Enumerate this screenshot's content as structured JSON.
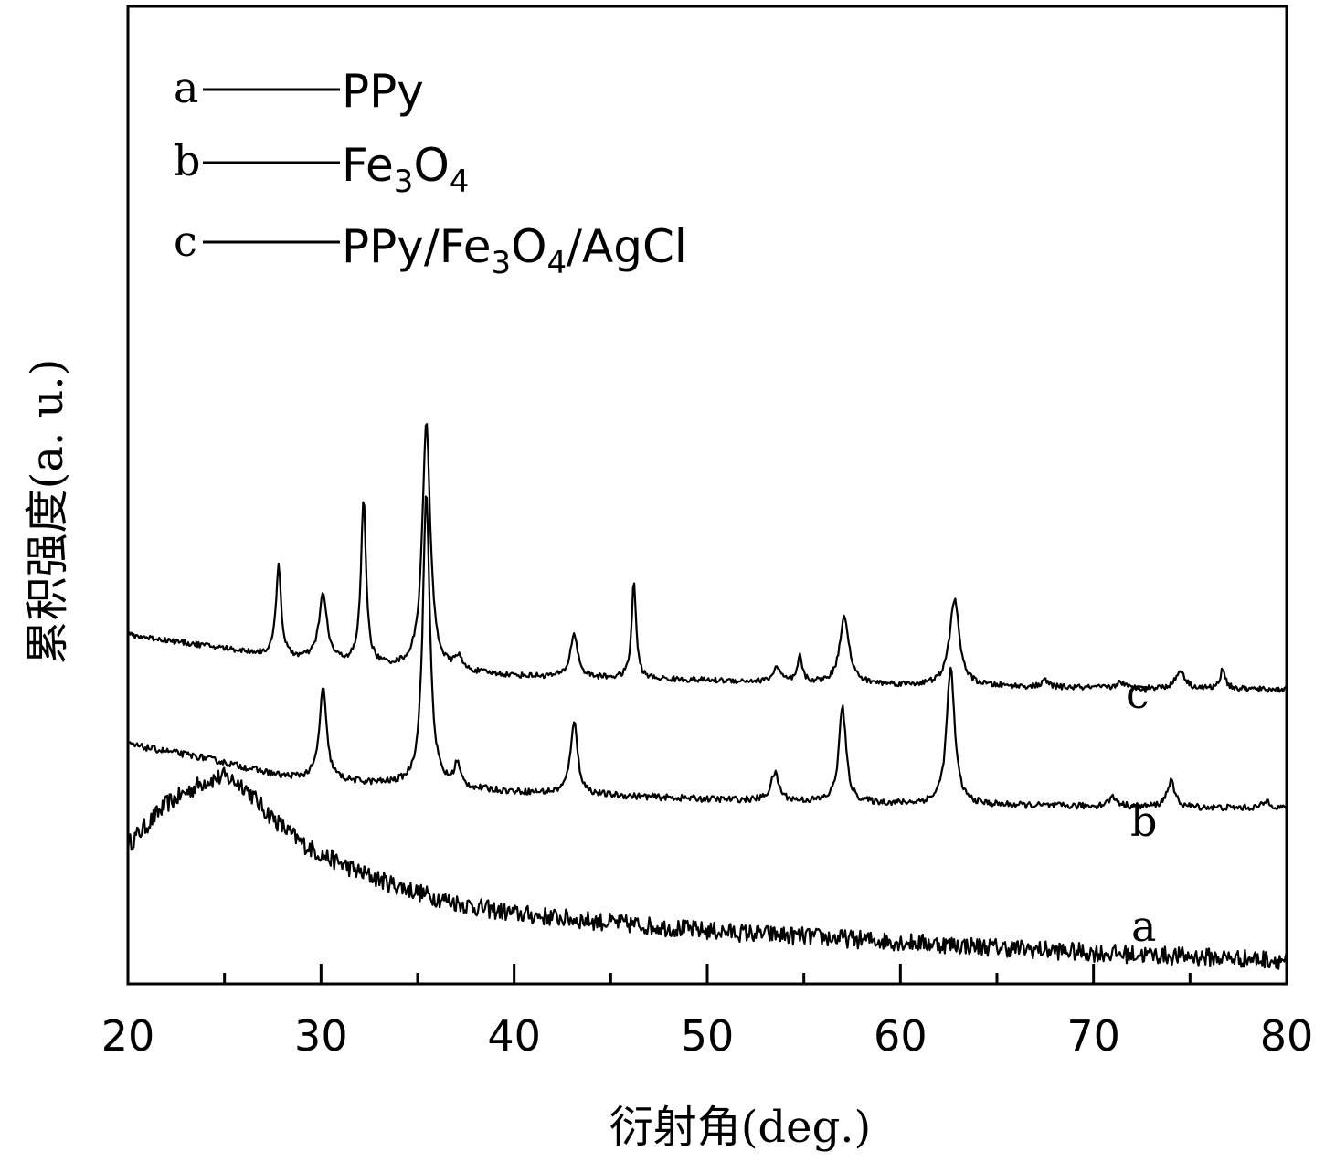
{
  "chart_data": {
    "type": "line",
    "title": "",
    "xlabel": "衍射角(deg.)",
    "ylabel": "累积强度(a. u.)",
    "xlim": [
      20,
      80
    ],
    "x_ticks": [
      20,
      30,
      40,
      50,
      60,
      70,
      80
    ],
    "y_ticks_shown": false,
    "grid": false,
    "legend": {
      "placement": "top-left",
      "entries": [
        {
          "key": "a",
          "label": "PPy"
        },
        {
          "key": "b",
          "label": "Fe3O4"
        },
        {
          "key": "c",
          "label": "PPy/Fe3O4/AgCl"
        }
      ]
    },
    "series": [
      {
        "name": "a",
        "label": "PPy",
        "x": [
          20,
          22,
          24,
          25,
          26,
          27,
          28,
          29,
          30,
          32,
          34,
          36,
          38,
          40,
          45,
          50,
          55,
          60,
          65,
          70,
          75,
          80
        ],
        "y": [
          1.3,
          1.75,
          2.0,
          2.05,
          1.95,
          1.7,
          1.5,
          1.32,
          1.2,
          1.0,
          0.85,
          0.72,
          0.62,
          0.55,
          0.45,
          0.36,
          0.3,
          0.24,
          0.18,
          0.12,
          0.08,
          0.04
        ],
        "noise": 0.1
      },
      {
        "name": "b",
        "label": "Fe3O4",
        "baseline": [
          [
            20,
            2.4
          ],
          [
            24,
            2.25
          ],
          [
            28,
            2.05
          ],
          [
            32,
            1.98
          ],
          [
            40,
            1.88
          ],
          [
            50,
            1.8
          ],
          [
            60,
            1.75
          ],
          [
            70,
            1.72
          ],
          [
            80,
            1.7
          ]
        ],
        "peaks": [
          {
            "x": 30.1,
            "height": 1.0,
            "width": 0.22
          },
          {
            "x": 35.45,
            "height": 3.2,
            "width": 0.22
          },
          {
            "x": 37.05,
            "height": 0.25,
            "width": 0.18
          },
          {
            "x": 43.1,
            "height": 0.8,
            "width": 0.22
          },
          {
            "x": 53.5,
            "height": 0.3,
            "width": 0.25
          },
          {
            "x": 57.0,
            "height": 1.05,
            "width": 0.22
          },
          {
            "x": 62.6,
            "height": 1.5,
            "width": 0.25
          },
          {
            "x": 71.0,
            "height": 0.1,
            "width": 0.3
          },
          {
            "x": 74.0,
            "height": 0.28,
            "width": 0.25
          },
          {
            "x": 79.0,
            "height": 0.08,
            "width": 0.25
          }
        ],
        "noise": 0.035
      },
      {
        "name": "c",
        "label": "PPy/Fe3O4/AgCl",
        "baseline": [
          [
            20,
            3.6
          ],
          [
            25,
            3.45
          ],
          [
            28,
            3.35
          ],
          [
            33,
            3.25
          ],
          [
            40,
            3.15
          ],
          [
            50,
            3.1
          ],
          [
            60,
            3.05
          ],
          [
            70,
            3.02
          ],
          [
            80,
            3.0
          ]
        ],
        "peaks": [
          {
            "x": 27.8,
            "height": 1.0,
            "width": 0.16
          },
          {
            "x": 30.1,
            "height": 0.72,
            "width": 0.25
          },
          {
            "x": 32.2,
            "height": 1.8,
            "width": 0.16
          },
          {
            "x": 35.45,
            "height": 2.7,
            "width": 0.25
          },
          {
            "x": 37.1,
            "height": 0.15,
            "width": 0.2
          },
          {
            "x": 43.1,
            "height": 0.48,
            "width": 0.22
          },
          {
            "x": 46.2,
            "height": 1.05,
            "width": 0.14
          },
          {
            "x": 53.6,
            "height": 0.16,
            "width": 0.22
          },
          {
            "x": 54.8,
            "height": 0.28,
            "width": 0.14
          },
          {
            "x": 57.1,
            "height": 0.75,
            "width": 0.28
          },
          {
            "x": 62.8,
            "height": 0.95,
            "width": 0.3
          },
          {
            "x": 67.5,
            "height": 0.07,
            "width": 0.2
          },
          {
            "x": 71.4,
            "height": 0.07,
            "width": 0.2
          },
          {
            "x": 74.5,
            "height": 0.2,
            "width": 0.28
          },
          {
            "x": 76.7,
            "height": 0.22,
            "width": 0.16
          }
        ],
        "noise": 0.03
      }
    ],
    "curve_labels": [
      "a",
      "b",
      "c"
    ]
  }
}
